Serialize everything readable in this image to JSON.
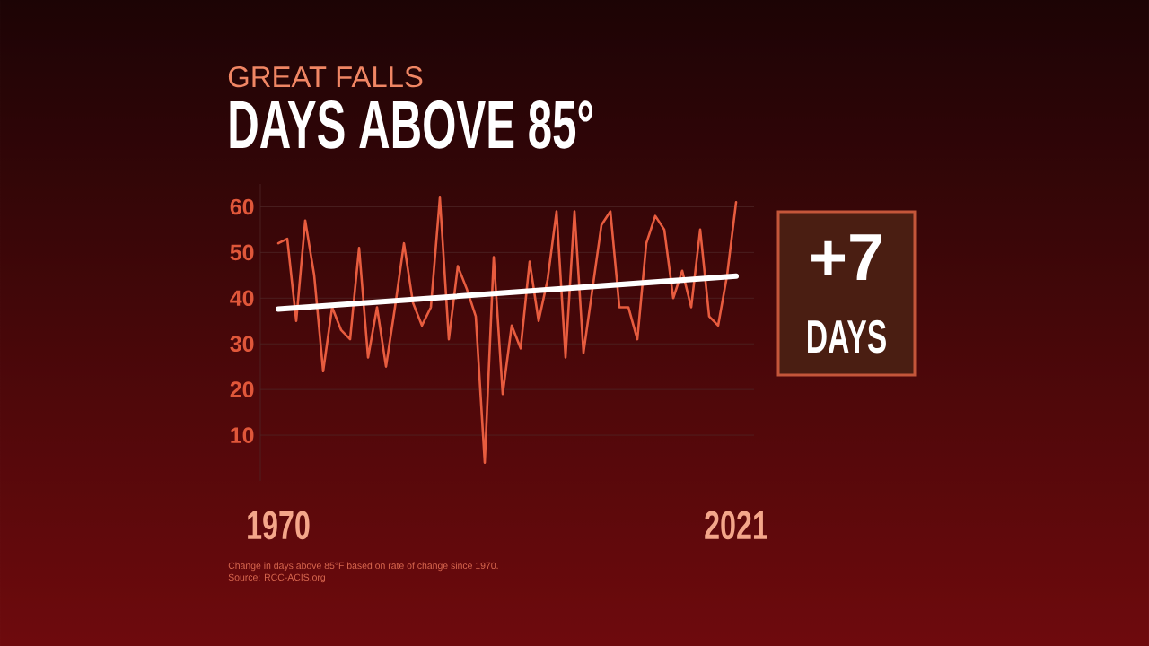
{
  "chart_data": {
    "type": "line",
    "title": "DAYS ABOVE 85°",
    "subtitle": "GREAT FALLS",
    "x": [
      1970,
      1971,
      1972,
      1973,
      1974,
      1975,
      1976,
      1977,
      1978,
      1979,
      1980,
      1981,
      1982,
      1983,
      1984,
      1985,
      1986,
      1987,
      1988,
      1989,
      1990,
      1991,
      1992,
      1993,
      1994,
      1995,
      1996,
      1997,
      1998,
      1999,
      2000,
      2001,
      2002,
      2003,
      2004,
      2005,
      2006,
      2007,
      2008,
      2009,
      2010,
      2011,
      2012,
      2013,
      2014,
      2015,
      2016,
      2017,
      2018,
      2019,
      2020,
      2021
    ],
    "series": [
      {
        "color": "#e85c3f",
        "values": [
          52,
          53,
          35,
          57,
          45,
          24,
          38,
          33,
          31,
          51,
          27,
          38,
          25,
          38,
          52,
          39,
          34,
          38,
          62,
          31,
          47,
          42,
          36,
          4,
          49,
          19,
          34,
          29,
          48,
          35,
          44,
          59,
          27,
          59,
          28,
          42,
          56,
          59,
          38,
          38,
          31,
          52,
          58,
          55,
          40,
          46,
          38,
          55,
          36,
          34,
          45,
          61
        ]
      },
      {
        "type": "line",
        "color": "#ffffff",
        "x": [
          1970,
          2021
        ],
        "values": [
          37.6,
          44.8
        ]
      }
    ],
    "xlim": [
      1968,
      2023
    ],
    "xticks": [
      1970,
      2021
    ],
    "ylim": [
      0,
      65
    ],
    "yticks": [
      10,
      20,
      30,
      40,
      50,
      60
    ],
    "grid": "y",
    "annotations": [
      "+7",
      "DAYS",
      "Change in days above 85°F based on rate of change since 1970.",
      "Source: RCC-ACIS.org"
    ]
  }
}
